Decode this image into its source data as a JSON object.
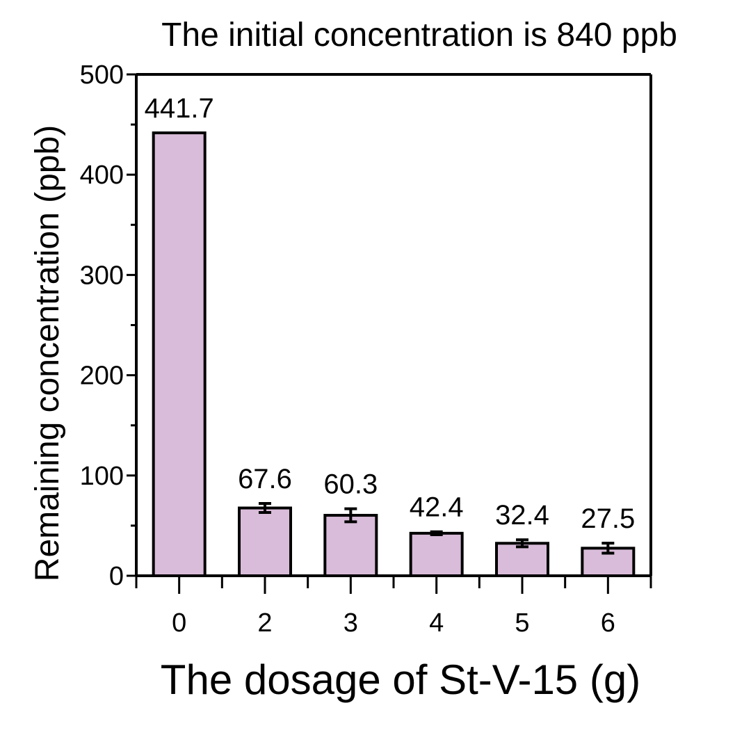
{
  "chart_data": {
    "type": "bar",
    "title": "The initial concentration is 840 ppb",
    "xlabel": "The dosage of St-V-15 (g)",
    "ylabel": "Remaining concentration (ppb)",
    "categories": [
      "0",
      "2",
      "3",
      "4",
      "5",
      "6"
    ],
    "values": [
      441.7,
      67.6,
      60.3,
      42.4,
      32.4,
      27.5
    ],
    "data_labels": [
      "441.7",
      "67.6",
      "60.3",
      "42.4",
      "32.4",
      "27.5"
    ],
    "errors": [
      0,
      4.5,
      6.5,
      1.5,
      3.5,
      5
    ],
    "ylim": [
      0,
      500
    ],
    "yticks": [
      0,
      100,
      200,
      300,
      400,
      500
    ],
    "ytick_labels": [
      "0",
      "100",
      "200",
      "300",
      "400",
      "500"
    ],
    "y_minor_step": 50,
    "grid": false,
    "bar_color": "#d9bcd9",
    "edge_color": "#000000"
  }
}
